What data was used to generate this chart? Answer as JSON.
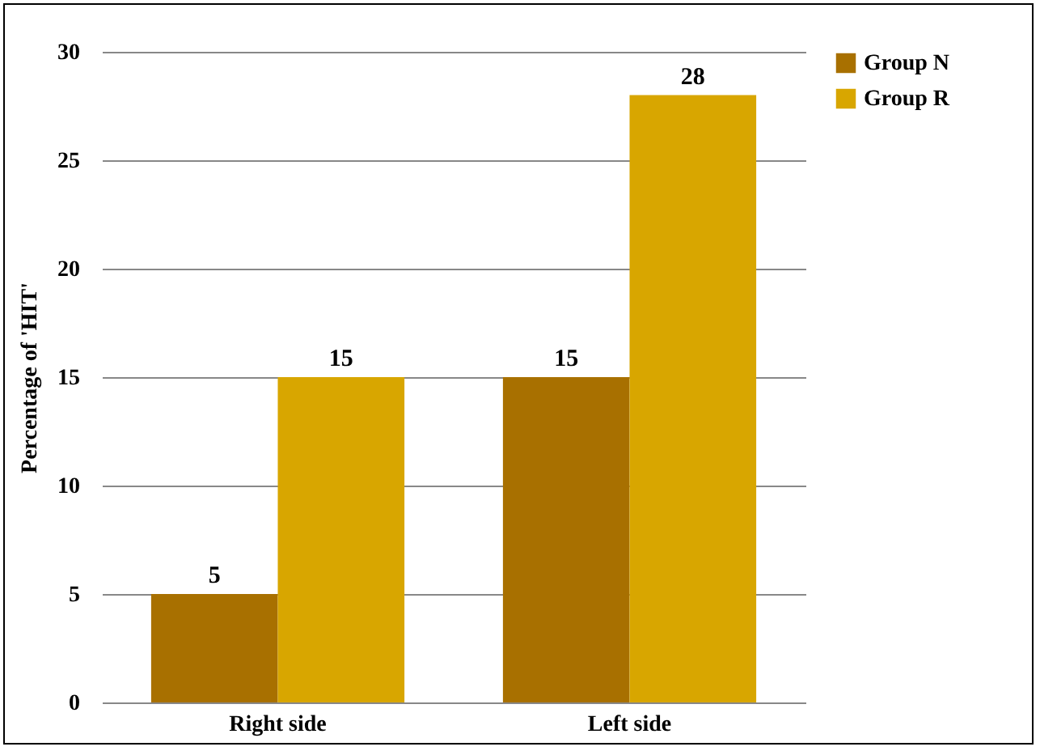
{
  "chart_data": {
    "type": "bar",
    "ylabel": "Percentage of 'HIT'",
    "categories": [
      "Right side",
      "Left side"
    ],
    "series": [
      {
        "name": "Group N",
        "color": "#a87000",
        "values": [
          5,
          15
        ]
      },
      {
        "name": "Group R",
        "color": "#d8a600",
        "values": [
          15,
          28
        ]
      }
    ],
    "ylim": [
      0,
      30
    ],
    "yticks": [
      0,
      5,
      10,
      15,
      20,
      25,
      30
    ],
    "grid": "y",
    "legend": "right",
    "data_labels": true
  }
}
